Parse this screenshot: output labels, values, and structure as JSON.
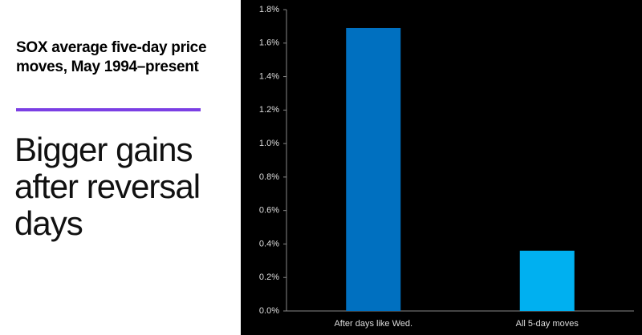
{
  "header": {
    "title": "SOX average five-day price moves, May 1994–present",
    "headline": "Bigger gains after reversal days"
  },
  "chart_data": {
    "type": "bar",
    "categories": [
      "After days like Wed.",
      "All 5-day moves"
    ],
    "values": [
      1.69,
      0.36
    ],
    "colors": [
      "#0070c0",
      "#00b0f0"
    ],
    "ylim": [
      0,
      1.8
    ],
    "yticks": [
      {
        "value": 0,
        "label": "0.0%"
      },
      {
        "value": 0.2,
        "label": "0.2%"
      },
      {
        "value": 0.4,
        "label": "0.4%"
      },
      {
        "value": 0.6,
        "label": "0.6%"
      },
      {
        "value": 0.8,
        "label": "0.8%"
      },
      {
        "value": 1.0,
        "label": "1.0%"
      },
      {
        "value": 1.2,
        "label": "1.2%"
      },
      {
        "value": 1.4,
        "label": "1.4%"
      },
      {
        "value": 1.6,
        "label": "1.6%"
      },
      {
        "value": 1.8,
        "label": "1.8%"
      }
    ],
    "grid": false
  }
}
